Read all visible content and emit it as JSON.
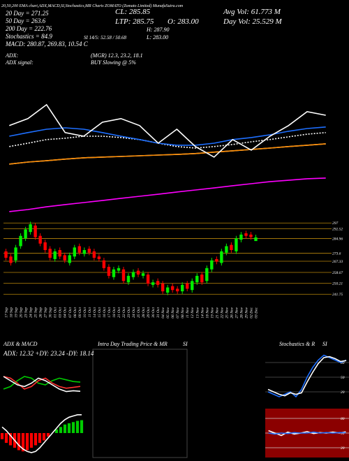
{
  "info": [
    "20,50,200 EMA chart,ADX,MACD,SI,Stochastics,MR Charts ZOMATO (Zomato Limited) MunafaSutra.com",
    "20 Day = 271.25",
    "50 Day = 263.6",
    "200 Day = 222.76",
    "Stochastics = 84.9",
    "MACD: 280.87, 269.83, 10.54 C",
    "ADX:",
    "ADX signal:",
    "(MGR) 12.3, 23.2, 18.1",
    "BUY Slowing @ 5%",
    "CL: 285.85",
    "LTP: 285.75",
    "O: 283.00",
    "H: 287.90",
    "L: 283.00",
    "SI 14/5: 52.58 / 50.68",
    "Avg Vol: 61.773 M",
    "Day Vol: 25.529 M",
    "ADX & MACD",
    "ADX: 12.32 +DY: 23.24 -DY: 18.14",
    "Intra Day Trading Price & MR",
    "SI",
    "Stochastics & R",
    "SI"
  ],
  "chart_data": [
    {
      "type": "candlestick",
      "up_color": "#00ee00",
      "down_color": "#ff0000",
      "grid_color": "#b8860b",
      "categories": [
        "17 Sep",
        "18 Sep",
        "19 Sep",
        "20 Sep",
        "23 Sep",
        "24 Sep",
        "25 Sep",
        "26 Sep",
        "27 Sep",
        "30 Sep",
        "01 Oct",
        "03 Oct",
        "04 Oct",
        "07 Oct",
        "08 Oct",
        "09 Oct",
        "10 Oct",
        "11 Oct",
        "14 Oct",
        "15 Oct",
        "16 Oct",
        "17 Oct",
        "18 Oct",
        "21 Oct",
        "22 Oct",
        "23 Oct",
        "24 Oct",
        "25 Oct",
        "28 Oct",
        "29 Oct",
        "30 Oct",
        "31 Oct",
        "04 Nov",
        "05 Nov",
        "06 Nov",
        "07 Nov",
        "08 Nov",
        "11 Nov",
        "12 Nov",
        "13 Nov",
        "14 Nov",
        "18 Nov",
        "19 Nov",
        "21 Nov",
        "22 Nov",
        "25 Nov",
        "26 Nov",
        "27 Nov",
        "28 Nov",
        "29 Nov",
        "02 Dec",
        "03 Dec"
      ],
      "open": [
        275,
        271,
        268,
        279,
        285,
        290,
        295,
        287,
        282,
        277,
        269,
        276,
        272,
        266,
        271,
        279,
        273,
        277,
        275,
        271,
        268,
        263,
        255,
        260,
        261,
        251,
        255,
        260,
        256,
        257,
        249,
        252,
        250,
        243,
        248,
        246,
        244,
        250,
        245,
        251,
        257,
        252,
        261,
        269,
        266,
        274,
        280,
        275,
        284,
        289,
        288,
        283
      ],
      "high": [
        277,
        273,
        280,
        289,
        294,
        298,
        297,
        289,
        284,
        279,
        277,
        278,
        274,
        274,
        280,
        281,
        278,
        279,
        277,
        273,
        270,
        265,
        263,
        264,
        263,
        258,
        261,
        262,
        260,
        259,
        253,
        254,
        252,
        249,
        250,
        248,
        251,
        252,
        254,
        258,
        259,
        264,
        270,
        271,
        277,
        281,
        282,
        287,
        290,
        291,
        290,
        287.9
      ],
      "low": [
        268,
        264,
        266,
        277,
        283,
        288,
        284,
        279,
        274,
        268,
        267,
        269,
        266,
        264,
        269,
        272,
        271,
        272,
        268,
        267,
        260,
        254,
        253,
        258,
        250,
        249,
        253,
        255,
        254,
        248,
        247,
        247,
        242,
        241,
        243,
        242,
        242,
        244,
        243,
        249,
        249,
        250,
        259,
        265,
        264,
        272,
        274,
        273,
        282,
        285,
        284,
        283
      ],
      "close": [
        270,
        266,
        278,
        287,
        292,
        296,
        286,
        281,
        276,
        270,
        275,
        271,
        268,
        272,
        278,
        274,
        276,
        274,
        270,
        269,
        262,
        256,
        261,
        262,
        252,
        256,
        259,
        257,
        258,
        250,
        251,
        249,
        244,
        247,
        245,
        244,
        249,
        246,
        252,
        256,
        251,
        262,
        268,
        267,
        275,
        279,
        276,
        285,
        288,
        287,
        286,
        285.85
      ],
      "ylim": [
        237,
        302
      ],
      "yticks": [
        297,
        292.52,
        284.96,
        273.6,
        267.33,
        258.67,
        250.21,
        241.75
      ]
    },
    {
      "type": "line",
      "categories": [
        null,
        null,
        null,
        null,
        null,
        null,
        null,
        null,
        null,
        null,
        null,
        null,
        null,
        null,
        null,
        null,
        null,
        null
      ],
      "ylim": [
        210,
        300
      ],
      "series": [
        {
          "color": "#d9d9d9",
          "values": [
            233.3,
            234.2,
            234.8,
            235.5,
            236.1,
            236.4,
            236.7,
            237,
            237.3,
            237.6,
            238,
            238.6,
            239.2,
            239.8,
            240.4,
            241.1,
            241.7,
            242.3
          ]
        },
        {
          "color": "#ff8c00",
          "values": [
            233.3,
            234.2,
            234.8,
            235.5,
            236.1,
            236.4,
            236.7,
            237,
            237.3,
            237.6,
            238,
            238.6,
            239.2,
            239.8,
            240.4,
            241.1,
            241.7,
            242.3
          ]
        },
        {
          "color": "#ff00ff",
          "values": [
            212.2,
            213.1,
            214.3,
            215.3,
            216.2,
            217.1,
            218.1,
            219,
            219.9,
            220.9,
            221.8,
            222.7,
            223.7,
            224.6,
            225.5,
            226.1,
            226.8,
            227.1
          ]
        },
        {
          "color": "#ffffff",
          "dash": true,
          "values": [
            241.1,
            242.6,
            244.2,
            244.8,
            245.7,
            245.7,
            245.1,
            244.2,
            242.6,
            241.1,
            240.4,
            241.1,
            242,
            243.2,
            244.2,
            245.4,
            246.6,
            247.3
          ]
        },
        {
          "color": "#1e6fff",
          "values": [
            245.7,
            247.3,
            248.8,
            249.4,
            248.8,
            247.3,
            245.7,
            244.2,
            242.6,
            241.7,
            241.7,
            242.6,
            244.2,
            245.1,
            246.3,
            247.9,
            249.1,
            249.8
          ]
        },
        {
          "color": "#ffffff",
          "values": [
            250.4,
            253.5,
            259.7,
            247.3,
            245.7,
            251.9,
            253.5,
            250.4,
            242.6,
            248.8,
            241.1,
            236.4,
            244.2,
            239.5,
            245.7,
            250.4,
            256.6,
            255
          ]
        }
      ]
    },
    {
      "type": "line",
      "categories": [
        null,
        null,
        null,
        null,
        null,
        null,
        null,
        null,
        null,
        null,
        null,
        null
      ],
      "ylim": [
        0,
        50
      ],
      "series": [
        {
          "color": "#00cc00",
          "values": [
            15,
            18,
            25,
            30,
            28,
            22,
            20,
            25,
            28,
            26,
            24,
            23.24
          ]
        },
        {
          "color": "#ff3030",
          "values": [
            30,
            28,
            22,
            15,
            18,
            25,
            28,
            22,
            18,
            16,
            17,
            18.14
          ]
        },
        {
          "color": "#ffffff",
          "values": [
            30,
            25,
            20,
            18,
            22,
            28,
            25,
            20,
            15,
            12,
            13,
            12.32
          ]
        }
      ]
    },
    {
      "type": "combo",
      "up_color": "#00cc00",
      "down_color": "#ff0000",
      "categories": [
        null,
        null,
        null,
        null,
        null,
        null,
        null,
        null,
        null,
        null,
        null,
        null,
        null,
        null,
        null,
        null,
        null,
        null,
        null,
        null
      ],
      "ylim": [
        -20,
        20
      ],
      "values": [
        -5,
        -8,
        -10,
        -12,
        -14,
        -15,
        -14,
        -12,
        -10,
        -8,
        -6,
        -3,
        0,
        3,
        5,
        7,
        8,
        9,
        10,
        10.54
      ],
      "series": [
        {
          "color": "#ffffff",
          "values": [
            5,
            2,
            -2,
            -6,
            -10,
            -13,
            -15,
            -16,
            -15,
            -12,
            -8,
            -4,
            0,
            4,
            8,
            11,
            13,
            14,
            15,
            15
          ]
        }
      ]
    },
    {
      "type": "line",
      "background": "#000000",
      "grid_color": "#555555",
      "categories": [
        null,
        null,
        null,
        null,
        null,
        null,
        null,
        null,
        null,
        null,
        null,
        null,
        null,
        null,
        null
      ],
      "ylim": [
        0,
        100
      ],
      "yticks": [
        20,
        50,
        80
      ],
      "series": [
        {
          "color": "#1e6fff",
          "values": [
            20,
            15,
            10,
            15,
            20,
            10,
            25,
            50,
            70,
            85,
            95,
            90,
            85,
            80,
            84.9
          ]
        },
        {
          "color": "#ffffff",
          "values": [
            25,
            20,
            15,
            12,
            18,
            15,
            18,
            40,
            60,
            78,
            90,
            92,
            88,
            82,
            84
          ]
        }
      ]
    },
    {
      "type": "line",
      "background": "#8b0000",
      "grid_color": "#cccccc",
      "categories": [
        null,
        null,
        null,
        null,
        null,
        null,
        null,
        null,
        null,
        null,
        null,
        null,
        null
      ],
      "ylim": [
        0,
        100
      ],
      "yticks": [
        20,
        50,
        80
      ],
      "series": [
        {
          "color": "#ffffff",
          "values": [
            55,
            50,
            45,
            52,
            48,
            50,
            53,
            49,
            51,
            50,
            52,
            50,
            52.58
          ]
        },
        {
          "color": "#1e6fff",
          "values": [
            50,
            48,
            50,
            49,
            51,
            50,
            50,
            52,
            50,
            51,
            50,
            51,
            50.68
          ]
        }
      ]
    }
  ]
}
